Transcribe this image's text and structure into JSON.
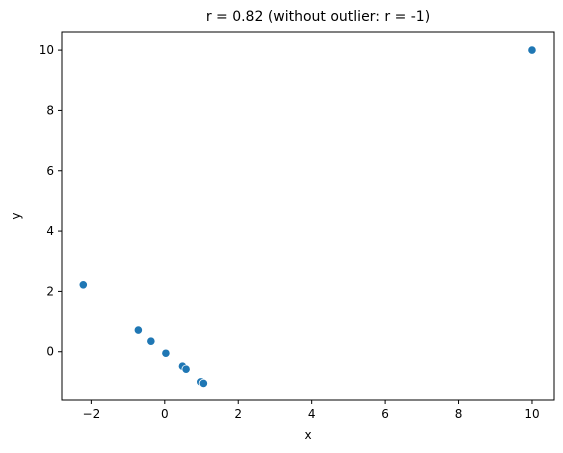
{
  "chart_data": {
    "type": "scatter",
    "title": "r = 0.82 (without outlier: r = -1)",
    "xlabel": "x",
    "ylabel": "y",
    "xlim": [
      -2.8,
      10.6
    ],
    "ylim": [
      -1.6,
      10.6
    ],
    "xticks": [
      -2,
      0,
      2,
      4,
      6,
      8,
      10
    ],
    "yticks": [
      0,
      2,
      4,
      6,
      8,
      10
    ],
    "xtick_labels": [
      "−2",
      "0",
      "2",
      "4",
      "6",
      "8",
      "10"
    ],
    "ytick_labels": [
      "0",
      "2",
      "4",
      "6",
      "8",
      "10"
    ],
    "grid": false,
    "legend": "none",
    "marker_color": "#1f77b4",
    "x": [
      -2.22,
      -0.72,
      -0.38,
      0.03,
      0.48,
      0.58,
      0.98,
      1.05,
      10.0
    ],
    "y": [
      2.22,
      0.72,
      0.35,
      -0.05,
      -0.48,
      -0.58,
      -1.0,
      -1.05,
      10.0
    ]
  }
}
